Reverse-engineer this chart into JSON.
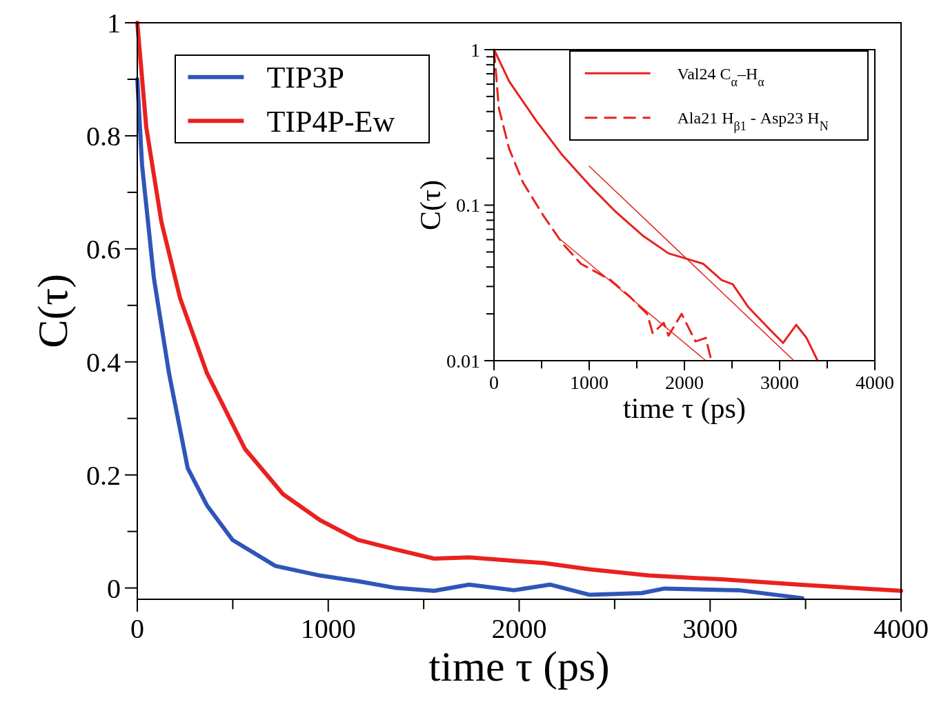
{
  "chart_data": [
    {
      "type": "line",
      "xlabel": "time τ (ps)",
      "ylabel": "C(τ)",
      "xlim": [
        0,
        4000
      ],
      "ylim": [
        -0.02,
        1
      ],
      "xticks": [
        0,
        {
          "value": 500,
          "label": null
        },
        1000,
        {
          "value": 1500,
          "label": null
        },
        2000,
        {
          "value": 2500,
          "label": null
        },
        3000,
        {
          "value": 3500,
          "label": null
        },
        4000
      ],
      "yticks": [
        0,
        {
          "value": 0.1,
          "label": null
        },
        0.2,
        {
          "value": 0.3,
          "label": null
        },
        0.4,
        {
          "value": 0.5,
          "label": null
        },
        0.6,
        {
          "value": 0.7,
          "label": null
        },
        0.8,
        {
          "value": 0.9,
          "label": null
        },
        1
      ],
      "legend": "top left",
      "grid": false,
      "marker": "none",
      "series": [
        {
          "name": "TIP3P",
          "color": "#2f55b8",
          "x": [
            0,
            25,
            87,
            166,
            264,
            365,
            499,
            723,
            957,
            1156,
            1355,
            1554,
            1738,
            1973,
            2161,
            2367,
            2642,
            2761,
            3151,
            3483
          ],
          "values": [
            0.9,
            0.748,
            0.548,
            0.38,
            0.212,
            0.146,
            0.085,
            0.039,
            0.022,
            0.012,
            0,
            -0.005,
            0.006,
            -0.004,
            0.006,
            -0.012,
            -0.009,
            -0.001,
            -0.004,
            -0.018
          ]
        },
        {
          "name": "TIP4P-Ew",
          "color": "#e8221f",
          "x": [
            0,
            47,
            126,
            224,
            365,
            564,
            763,
            957,
            1156,
            1355,
            1554,
            1738,
            2132,
            2367,
            2681,
            3075,
            3465,
            4000
          ],
          "values": [
            1,
            0.815,
            0.648,
            0.513,
            0.38,
            0.246,
            0.166,
            0.12,
            0.085,
            0.068,
            0.052,
            0.054,
            0.044,
            0.033,
            0.022,
            0.015,
            0.006,
            -0.005
          ]
        }
      ]
    },
    {
      "type": "line",
      "xlabel": "time τ (ps)",
      "ylabel": "C(τ)",
      "xlim": [
        0,
        4000
      ],
      "ylim": [
        0.01,
        1
      ],
      "log": "y",
      "xticks": [
        0,
        {
          "value": 500,
          "label": null
        },
        1000,
        {
          "value": 1500,
          "label": null
        },
        2000,
        {
          "value": 2500,
          "label": null
        },
        3000,
        {
          "value": 3500,
          "label": null
        },
        4000
      ],
      "yticks": [
        0.01,
        {
          "value": 0.02,
          "label": null
        },
        {
          "value": 0.03,
          "label": null
        },
        {
          "value": 0.04,
          "label": null
        },
        {
          "value": 0.05,
          "label": null
        },
        {
          "value": 0.06,
          "label": null
        },
        {
          "value": 0.07,
          "label": null
        },
        {
          "value": 0.08,
          "label": null
        },
        {
          "value": 0.09,
          "label": null
        },
        0.1,
        {
          "value": 0.2,
          "label": null
        },
        {
          "value": 0.3,
          "label": null
        },
        {
          "value": 0.4,
          "label": null
        },
        {
          "value": 0.5,
          "label": null
        },
        {
          "value": 0.6,
          "label": null
        },
        {
          "value": 0.7,
          "label": null
        },
        {
          "value": 0.8,
          "label": null
        },
        {
          "value": 0.9,
          "label": null
        },
        1
      ],
      "legend": "top right",
      "grid": false,
      "marker": "none",
      "series": [
        {
          "name": "Val24 C$_{α}$–H$_{α}$",
          "color": "#e8221f",
          "line_style": "solid",
          "x": [
            1,
            160,
            442,
            717,
            1000,
            1275,
            1558,
            1833,
            2087,
            2196,
            2391,
            2507,
            2674,
            2891,
            3036,
            3174,
            3283,
            3399
          ],
          "values": [
            1,
            0.625,
            0.35,
            0.21,
            0.135,
            0.091,
            0.064,
            0.049,
            0.044,
            0.042,
            0.033,
            0.031,
            0.022,
            0.016,
            0.013,
            0.017,
            0.014,
            0.01
          ]
        },
        {
          "name": "Ala21 H$_{β1}$ - Asp23 H$_{N}$",
          "color": "#e8221f",
          "line_style": "dashed",
          "x": [
            1,
            51,
            160,
            304,
            522,
            717,
            913,
            1225,
            1420,
            1609,
            1667,
            1783,
            1833,
            1971,
            2116,
            2225,
            2283
          ],
          "values": [
            1,
            0.42,
            0.23,
            0.14,
            0.085,
            0.057,
            0.042,
            0.033,
            0.026,
            0.02,
            0.015,
            0.0175,
            0.0145,
            0.02,
            0.0133,
            0.014,
            0.01
          ]
        },
        {
          "color": "#e8221f",
          "line_style": "solid",
          "x": [
            1000,
            3150
          ],
          "values": [
            0.178,
            0.01
          ]
        },
        {
          "color": "#e8221f",
          "line_style": "solid",
          "x": [
            700,
            2225
          ],
          "values": [
            0.06,
            0.01
          ]
        }
      ]
    }
  ]
}
